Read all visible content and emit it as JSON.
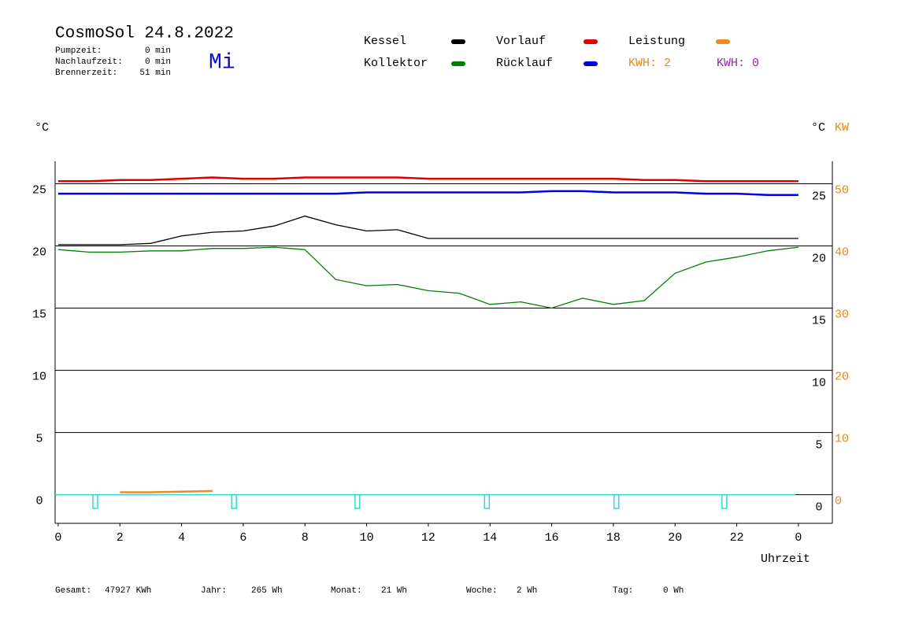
{
  "chart_data": {
    "type": "line",
    "title": "CosmoSol 24.8.2022",
    "weekday": "Mi",
    "stats": [
      {
        "label": "Pumpzeit:",
        "value": "0 min"
      },
      {
        "label": "Nachlaufzeit:",
        "value": "0 min"
      },
      {
        "label": "Brennerzeit:",
        "value": "51 min"
      }
    ],
    "y_unit": "°C",
    "y2_unit": "KW",
    "x_label": "Uhrzeit",
    "x": [
      0,
      1,
      2,
      3,
      4,
      5,
      6,
      7,
      8,
      9,
      10,
      11,
      12,
      13,
      14,
      15,
      16,
      17,
      18,
      19,
      20,
      21,
      22,
      23,
      24
    ],
    "series": [
      {
        "name": "Kessel",
        "color": "#000000",
        "values": [
          20.1,
          20.1,
          20.1,
          20.2,
          20.8,
          21.1,
          21.2,
          21.6,
          22.4,
          21.7,
          21.2,
          21.3,
          20.6,
          20.6,
          20.6,
          20.6,
          20.6,
          20.6,
          20.6,
          20.6,
          20.6,
          20.6,
          20.6,
          20.6,
          20.6
        ]
      },
      {
        "name": "Kollektor",
        "color": "#007f00",
        "values": [
          19.7,
          19.5,
          19.5,
          19.6,
          19.6,
          19.8,
          19.8,
          19.9,
          19.7,
          17.3,
          16.8,
          16.9,
          16.4,
          16.2,
          15.3,
          15.5,
          15.0,
          15.8,
          15.3,
          15.6,
          17.8,
          18.7,
          19.1,
          19.6,
          19.9
        ]
      },
      {
        "name": "Vorlauf",
        "color": "#e00000",
        "values": [
          25.2,
          25.2,
          25.3,
          25.3,
          25.4,
          25.5,
          25.4,
          25.4,
          25.5,
          25.5,
          25.5,
          25.5,
          25.4,
          25.4,
          25.4,
          25.4,
          25.4,
          25.4,
          25.4,
          25.3,
          25.3,
          25.2,
          25.2,
          25.2,
          25.2
        ]
      },
      {
        "name": "Rücklauf",
        "color": "#0000e0",
        "values": [
          24.2,
          24.2,
          24.2,
          24.2,
          24.2,
          24.2,
          24.2,
          24.2,
          24.2,
          24.2,
          24.3,
          24.3,
          24.3,
          24.3,
          24.3,
          24.3,
          24.4,
          24.4,
          24.3,
          24.3,
          24.3,
          24.2,
          24.2,
          24.1,
          24.1
        ]
      },
      {
        "name": "Leistung",
        "color": "#f08a1e",
        "axis": "y2",
        "values": [
          null,
          null,
          0.4,
          0.4,
          0.5,
          0.6,
          null,
          null,
          null,
          null,
          null,
          null,
          null,
          null,
          null,
          null,
          null,
          null,
          null,
          null,
          null,
          null,
          null,
          null,
          null
        ]
      }
    ],
    "kwh_labels": [
      {
        "text": "KWH: 2",
        "color": "#e08a1e"
      },
      {
        "text": "KWH: 0",
        "color": "#8a2ea0"
      }
    ],
    "pulses": {
      "color": "#30d8d8",
      "x": [
        1.2,
        5.7,
        9.7,
        13.9,
        18.1,
        21.6
      ],
      "depth": -1.1
    },
    "xlim": [
      -0.1,
      25.1
    ],
    "xticks": [
      0,
      2,
      4,
      6,
      8,
      10,
      12,
      14,
      16,
      18,
      20,
      22,
      {
        "value": 24,
        "label": "0"
      }
    ],
    "ylim": [
      -2.3,
      26.8
    ],
    "yticks": [
      0,
      5,
      10,
      15,
      20,
      25
    ],
    "y2lim": [
      -4.6,
      53.6
    ],
    "y2ticks": [
      0,
      10,
      20,
      30,
      40,
      50
    ],
    "y2_color": "#e08a1e",
    "grid": true,
    "totals": [
      {
        "label": "Gesamt:",
        "value": "47927 KWh"
      },
      {
        "label": "Jahr:",
        "value": "265 Wh"
      },
      {
        "label": "Monat:",
        "value": "21 Wh"
      },
      {
        "label": "Woche:",
        "value": "2 Wh"
      },
      {
        "label": "Tag:",
        "value": "0 Wh"
      }
    ]
  }
}
